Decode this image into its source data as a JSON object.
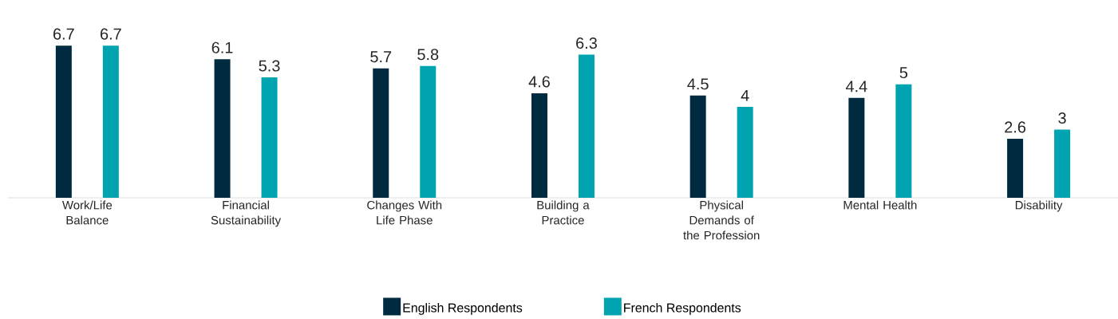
{
  "chart_data": {
    "type": "bar",
    "categories": [
      "Work/Life Balance",
      "Financial Sustainability",
      "Changes With Life Phase",
      "Building a Practice",
      "Physical Demands of the Profession",
      "Mental Health",
      "Disability"
    ],
    "series": [
      {
        "name": "English Respondents",
        "color": "#002a3f",
        "values": [
          6.7,
          6.1,
          5.7,
          4.6,
          4.5,
          4.4,
          2.6
        ]
      },
      {
        "name": "French Respondents",
        "color": "#00a3b0",
        "values": [
          6.7,
          5.3,
          5.8,
          6.3,
          4,
          5,
          3
        ]
      }
    ],
    "data_labels": true,
    "legend": "bottom"
  }
}
